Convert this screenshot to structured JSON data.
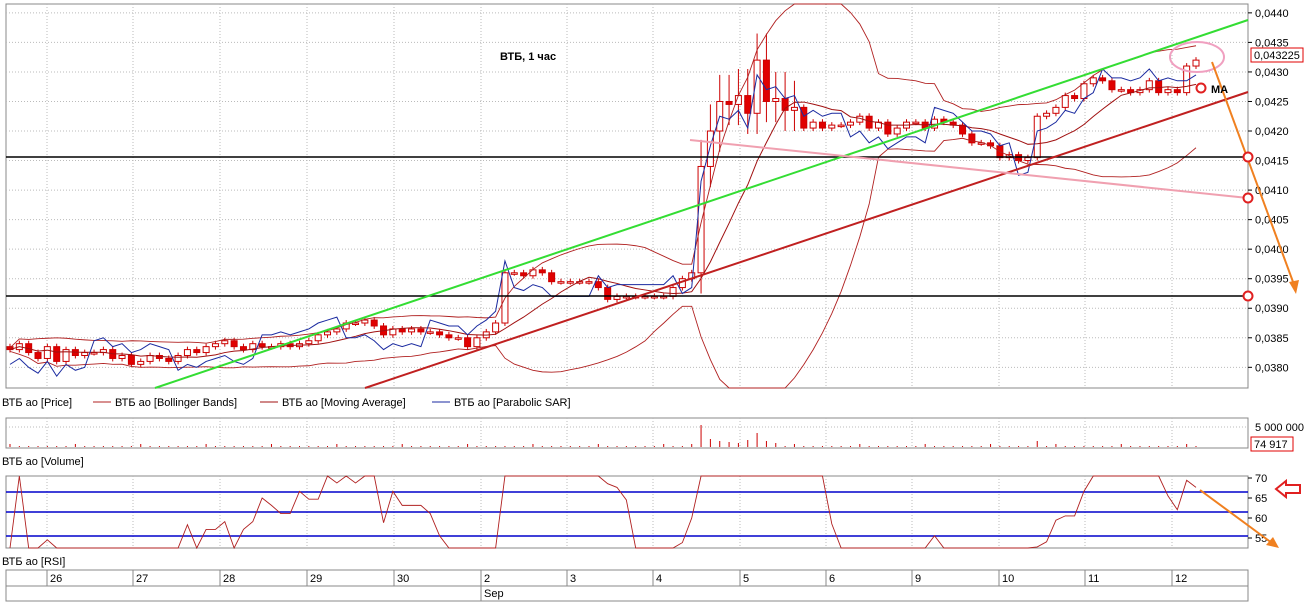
{
  "chart_data": [
    {
      "type": "candlestick",
      "title": "ВТБ,  1 час",
      "price_axis": {
        "ticks": [
          "0,0380",
          "0,0385",
          "0,0390",
          "0,0395",
          "0,0400",
          "0,0405",
          "0,0410",
          "0,0415",
          "0,0420",
          "0,0425",
          "0,0430",
          "0,0435",
          "0,0440"
        ],
        "range": [
          0.03765,
          0.04415
        ]
      },
      "current_price": "0,043225",
      "annotation": "MA",
      "legend": [
        "ВТБ ао [Price]",
        "ВТБ ао [Bollinger Bands]",
        "ВТБ ао [Moving Average]",
        "ВТБ ао [Parabolic SAR]"
      ],
      "close": [
        0.0383,
        0.0384,
        0.03825,
        0.03815,
        0.03835,
        0.0381,
        0.0383,
        0.0382,
        0.03825,
        0.03825,
        0.0383,
        0.03815,
        0.0382,
        0.03805,
        0.0381,
        0.0382,
        0.03815,
        0.0381,
        0.0382,
        0.0383,
        0.03825,
        0.03835,
        0.0384,
        0.03845,
        0.03835,
        0.0383,
        0.0384,
        0.03835,
        0.03835,
        0.0384,
        0.03835,
        0.0384,
        0.03845,
        0.03855,
        0.0386,
        0.03865,
        0.03875,
        0.03875,
        0.0388,
        0.0387,
        0.03855,
        0.03865,
        0.0386,
        0.03865,
        0.0386,
        0.0386,
        0.03855,
        0.0385,
        0.0385,
        0.03835,
        0.0385,
        0.0386,
        0.03875,
        0.0396,
        0.0396,
        0.03955,
        0.03965,
        0.0396,
        0.03945,
        0.03945,
        0.03945,
        0.03945,
        0.03945,
        0.03935,
        0.03915,
        0.0392,
        0.0392,
        0.0392,
        0.0392,
        0.0392,
        0.0392,
        0.03935,
        0.0395,
        0.0396,
        0.0414,
        0.042,
        0.0425,
        0.04245,
        0.0426,
        0.0423,
        0.0432,
        0.0425,
        0.04255,
        0.04235,
        0.0424,
        0.04205,
        0.04215,
        0.04205,
        0.0421,
        0.0421,
        0.04215,
        0.04225,
        0.04205,
        0.04215,
        0.04195,
        0.04205,
        0.04215,
        0.04215,
        0.04205,
        0.0422,
        0.04215,
        0.0421,
        0.04195,
        0.0418,
        0.0418,
        0.04175,
        0.04155,
        0.0416,
        0.0415,
        0.04155,
        0.04225,
        0.0423,
        0.0424,
        0.0426,
        0.04255,
        0.0428,
        0.0429,
        0.04285,
        0.0427,
        0.0427,
        0.04265,
        0.0427,
        0.04285,
        0.04265,
        0.0427,
        0.04265,
        0.0431,
        0.0432
      ],
      "rsi": {
        "ticks": [
          "55",
          "60",
          "65",
          "70"
        ],
        "range": [
          52.5,
          70.5
        ],
        "levels": [
          55.5,
          61.5,
          66.5
        ]
      },
      "volume": {
        "ticks": [
          "5 000 000"
        ],
        "last": "74 917",
        "label": "ВТБ ао [Volume]"
      },
      "rsi_label": "ВТБ ао [RSI]",
      "dates": [
        "26",
        "27",
        "28",
        "29",
        "30",
        "2",
        "3",
        "4",
        "5",
        "6",
        "9",
        "10",
        "11",
        "12"
      ],
      "month": "Sep"
    }
  ]
}
